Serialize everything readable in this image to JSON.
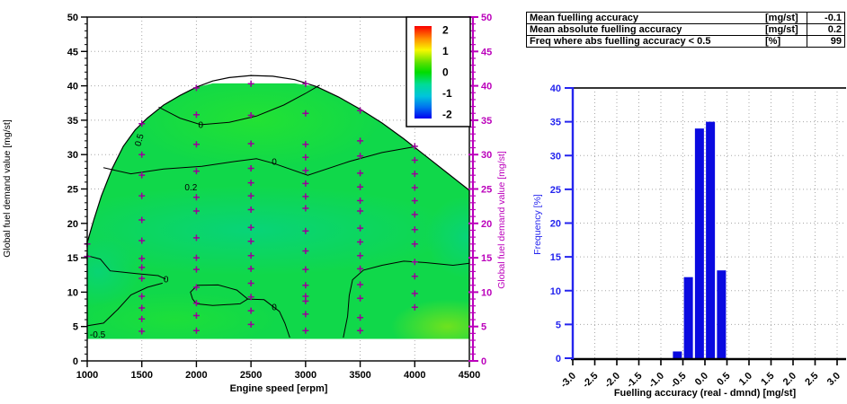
{
  "colors": {
    "fill_green": "#10d84a",
    "marker_magenta": "#990099",
    "axis_magenta": "#bb00bb",
    "bar_blue": "#0a0ae0",
    "hist_axis_blue": "#2424ee",
    "grid_gray": "#a8a8a8",
    "contour_black": "#000000",
    "frame_black": "#000000"
  },
  "stats_table": {
    "rows": [
      {
        "label": "Mean fuelling accuracy",
        "unit": "[mg/st]",
        "value": "-0.1"
      },
      {
        "label": "Mean absolute fuelling accuracy",
        "unit": "[mg/st]",
        "value": "0.2"
      },
      {
        "label": "Freq where abs fuelling accuracy < 0.5",
        "unit": "[%]",
        "value": "99"
      }
    ]
  },
  "chart_data": [
    {
      "type": "heatmap",
      "name": "fuelling-accuracy-map",
      "xlabel": "Engine speed [erpm]",
      "ylabel_left": "Global fuel demand value [mg/st]",
      "ylabel_right": "Global fuel demand value [mg/st]",
      "xlim": [
        1000,
        4500
      ],
      "ylim": [
        0,
        50
      ],
      "xticks": [
        1000,
        1500,
        2000,
        2500,
        3000,
        3500,
        4000,
        4500
      ],
      "yticks": [
        0,
        5,
        10,
        15,
        20,
        25,
        30,
        35,
        40,
        45,
        50
      ],
      "grid": true,
      "colorbar": {
        "labels": [
          "2",
          "1",
          "0",
          "-1",
          "-2"
        ],
        "stops": [
          [
            0,
            "#fa0000"
          ],
          [
            0.14,
            "#ff9000"
          ],
          [
            0.26,
            "#f8f800"
          ],
          [
            0.4,
            "#58e000"
          ],
          [
            0.5,
            "#00dc00"
          ],
          [
            0.63,
            "#00dc96"
          ],
          [
            0.76,
            "#00c4dc"
          ],
          [
            0.88,
            "#0070f0"
          ],
          [
            1,
            "#0000f0"
          ]
        ]
      },
      "envelope": [
        [
          1000,
          17.2
        ],
        [
          1060,
          20.5
        ],
        [
          1130,
          24.0
        ],
        [
          1230,
          28.0
        ],
        [
          1330,
          31.2
        ],
        [
          1440,
          33.6
        ],
        [
          1550,
          35.3
        ],
        [
          1700,
          37.2
        ],
        [
          1850,
          38.6
        ],
        [
          2000,
          39.8
        ],
        [
          2150,
          40.7
        ],
        [
          2300,
          41.2
        ],
        [
          2500,
          41.5
        ],
        [
          2700,
          41.4
        ],
        [
          2900,
          40.9
        ],
        [
          3100,
          39.9
        ],
        [
          3300,
          38.4
        ],
        [
          3500,
          36.6
        ],
        [
          3700,
          34.6
        ],
        [
          3900,
          32.3
        ],
        [
          4100,
          29.8
        ],
        [
          4300,
          27.3
        ],
        [
          4500,
          24.8
        ]
      ],
      "fill_cap": 40.35,
      "fill_bottom": 3.2,
      "tints": [
        {
          "cx": 2500,
          "cy": 19,
          "rx": 1900,
          "ry": 6.5,
          "color": "#00cfa6",
          "opacity": 0.5
        },
        {
          "cx": 1100,
          "cy": 13,
          "rx": 380,
          "ry": 5,
          "color": "#00cfa6",
          "opacity": 0.45
        },
        {
          "cx": 4480,
          "cy": 18,
          "rx": 380,
          "ry": 6,
          "color": "#00cfa6",
          "opacity": 0.5
        },
        {
          "cx": 2550,
          "cy": 35,
          "rx": 1150,
          "ry": 7,
          "color": "#2ae62a",
          "opacity": 0.7
        },
        {
          "cx": 1800,
          "cy": 6,
          "rx": 950,
          "ry": 4,
          "color": "#2ae62a",
          "opacity": 0.5
        },
        {
          "cx": 4300,
          "cy": 5,
          "rx": 520,
          "ry": 4,
          "color": "#86e414",
          "opacity": 0.8
        }
      ],
      "contours": [
        {
          "points": [
            [
              1655,
              36.9
            ],
            [
              1850,
              35.3
            ],
            [
              2040,
              34.35
            ],
            [
              2300,
              34.7
            ],
            [
              2550,
              35.6
            ],
            [
              2800,
              37.2
            ],
            [
              3000,
              38.9
            ],
            [
              3130,
              40.1
            ]
          ]
        },
        {
          "points": [
            [
              1148,
              28.1
            ],
            [
              1400,
              27.2
            ],
            [
              1700,
              27.9
            ],
            [
              2050,
              28.3
            ],
            [
              2350,
              29.0
            ],
            [
              2550,
              29.4
            ],
            [
              2713,
              28.7
            ],
            [
              3020,
              27.0
            ],
            [
              3400,
              29.0
            ],
            [
              3700,
              30.3
            ],
            [
              3985,
              31.1
            ]
          ]
        },
        {
          "points": [
            [
              1000,
              15.3
            ],
            [
              1120,
              14.8
            ],
            [
              1210,
              13.1
            ],
            [
              1450,
              12.7
            ],
            [
              1650,
              12.4
            ],
            [
              1718,
              11.9
            ]
          ]
        },
        {
          "points": [
            [
              1000,
              5.1
            ],
            [
              1150,
              5.5
            ],
            [
              1280,
              7.5
            ],
            [
              1400,
              9.6
            ],
            [
              1550,
              10.7
            ],
            [
              1690,
              11.3
            ]
          ]
        },
        {
          "points": [
            [
              1965,
              9.0
            ],
            [
              1945,
              10.0
            ],
            [
              2010,
              11.0
            ],
            [
              2200,
              11.05
            ],
            [
              2370,
              10.3
            ],
            [
              2470,
              9.0
            ],
            [
              2400,
              8.3
            ],
            [
              2150,
              8.05
            ],
            [
              2000,
              8.3
            ],
            [
              1965,
              9.0
            ]
          ]
        },
        {
          "points": [
            [
              2470,
              9.0
            ],
            [
              2620,
              8.9
            ],
            [
              2760,
              7.2
            ],
            [
              2810,
              5.5
            ],
            [
              2855,
              3.4
            ]
          ]
        },
        {
          "points": [
            [
              3345,
              3.4
            ],
            [
              3385,
              6.5
            ],
            [
              3400,
              9.5
            ],
            [
              3430,
              11.8
            ],
            [
              3530,
              13.2
            ],
            [
              3700,
              13.9
            ],
            [
              3900,
              14.5
            ],
            [
              4100,
              14.3
            ],
            [
              4350,
              13.9
            ],
            [
              4500,
              14.2
            ]
          ]
        }
      ],
      "contour_labels": [
        {
          "text": "0",
          "x": 2040,
          "y": 34.3
        },
        {
          "text": "0.2",
          "x": 1950,
          "y": 25.2
        },
        {
          "text": "0",
          "x": 2713,
          "y": 28.9
        },
        {
          "text": "0",
          "x": 1722,
          "y": 11.8
        },
        {
          "text": "0",
          "x": 2713,
          "y": 7.8
        },
        {
          "text": "-0.5",
          "x": 1095,
          "y": 3.8
        },
        {
          "text": "0.5",
          "x": 1502,
          "y": 32.4,
          "rotate": -75
        }
      ],
      "markers": [
        [
          1000,
          17.0
        ],
        [
          1000,
          15.2
        ],
        [
          1500,
          34.5
        ],
        [
          1500,
          30.0
        ],
        [
          1500,
          27.0
        ],
        [
          1500,
          24.0
        ],
        [
          1500,
          20.5
        ],
        [
          1500,
          17.5
        ],
        [
          1500,
          14.9
        ],
        [
          1500,
          13.6
        ],
        [
          1500,
          12.0
        ],
        [
          1500,
          9.4
        ],
        [
          1500,
          7.7
        ],
        [
          1500,
          6.1
        ],
        [
          1500,
          4.3
        ],
        [
          2000,
          39.7
        ],
        [
          2000,
          35.8
        ],
        [
          2000,
          31.5
        ],
        [
          2000,
          27.6
        ],
        [
          2000,
          23.8
        ],
        [
          2000,
          21.8
        ],
        [
          2000,
          17.9
        ],
        [
          2000,
          15.0
        ],
        [
          2000,
          13.3
        ],
        [
          2000,
          10.7
        ],
        [
          2000,
          8.4
        ],
        [
          2000,
          6.6
        ],
        [
          2000,
          4.4
        ],
        [
          2500,
          40.3
        ],
        [
          2500,
          35.7
        ],
        [
          2500,
          31.6
        ],
        [
          2500,
          28.0
        ],
        [
          2500,
          25.9
        ],
        [
          2500,
          24.0
        ],
        [
          2500,
          22.0
        ],
        [
          2500,
          19.4
        ],
        [
          2500,
          17.4
        ],
        [
          2500,
          15.3
        ],
        [
          2500,
          13.4
        ],
        [
          2500,
          11.3
        ],
        [
          2500,
          9.3
        ],
        [
          2500,
          7.3
        ],
        [
          2500,
          5.3
        ],
        [
          3000,
          40.3
        ],
        [
          3000,
          36.0
        ],
        [
          3000,
          31.5
        ],
        [
          3000,
          29.6
        ],
        [
          3000,
          27.7
        ],
        [
          3000,
          25.8
        ],
        [
          3000,
          23.9
        ],
        [
          3000,
          22.2
        ],
        [
          3000,
          18.9
        ],
        [
          3000,
          16.0
        ],
        [
          3000,
          13.3
        ],
        [
          3000,
          11.0
        ],
        [
          3000,
          9.4
        ],
        [
          3000,
          8.7
        ],
        [
          3000,
          6.8
        ],
        [
          3000,
          4.4
        ],
        [
          3500,
          36.4
        ],
        [
          3500,
          32.0
        ],
        [
          3500,
          29.8
        ],
        [
          3500,
          27.3
        ],
        [
          3500,
          25.3
        ],
        [
          3500,
          23.3
        ],
        [
          3500,
          21.8
        ],
        [
          3500,
          19.3
        ],
        [
          3500,
          17.3
        ],
        [
          3500,
          15.3
        ],
        [
          3500,
          13.4
        ],
        [
          3500,
          11.1
        ],
        [
          3500,
          9.1
        ],
        [
          3500,
          6.3
        ],
        [
          3500,
          4.4
        ],
        [
          4000,
          31.2
        ],
        [
          4000,
          29.2
        ],
        [
          4000,
          27.2
        ],
        [
          4000,
          25.2
        ],
        [
          4000,
          23.3
        ],
        [
          4000,
          21.3
        ],
        [
          4000,
          19.1
        ],
        [
          4000,
          17.0
        ],
        [
          4000,
          14.4
        ],
        [
          4000,
          12.3
        ],
        [
          4000,
          9.8
        ],
        [
          4000,
          7.8
        ]
      ]
    },
    {
      "type": "bar",
      "name": "fuelling-accuracy-histogram",
      "x": [
        -0.625,
        -0.375,
        -0.125,
        0.125,
        0.375
      ],
      "values": [
        1,
        12,
        34,
        35,
        13
      ],
      "bin_width": 0.25,
      "xlabel": "Fuelling accuracy (real - dmnd) [mg/st]",
      "ylabel": "Frequency [%]",
      "xlim": [
        -3,
        3
      ],
      "ylim": [
        0,
        40
      ],
      "xticks": [
        -3.0,
        -2.5,
        -2.0,
        -1.5,
        -1.0,
        -0.5,
        0.0,
        0.5,
        1.0,
        1.5,
        2.0,
        2.5,
        3.0
      ],
      "yticks": [
        0,
        5,
        10,
        15,
        20,
        25,
        30,
        35,
        40
      ],
      "grid": true,
      "legend": "none"
    }
  ]
}
